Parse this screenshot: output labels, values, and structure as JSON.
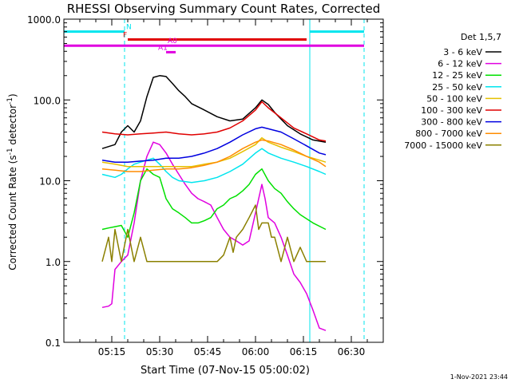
{
  "chart_data": {
    "type": "line",
    "title": "RHESSI Observing Summary Count Rates, Corrected",
    "xlabel": "Start Time (07-Nov-15 05:00:02)",
    "ylabel": "Corrected Count Rate (s",
    "ylabel_sup1": "-1",
    "ylabel_mid": " detector",
    "ylabel_sup2": "-1",
    "ylabel_end": ")",
    "y_scale": "log",
    "ylim": [
      0.1,
      1000
    ],
    "xlim": [
      "05:00",
      "06:40"
    ],
    "yticks": [
      {
        "value": 0.1,
        "label": "0.1"
      },
      {
        "value": 1,
        "label": "1.0"
      },
      {
        "value": 10,
        "label": "10.0"
      },
      {
        "value": 100,
        "label": "100.0"
      },
      {
        "value": 1000,
        "label": "1000.0"
      }
    ],
    "xticks": [
      {
        "value": "05:15",
        "label": "05:15"
      },
      {
        "value": "05:30",
        "label": "05:30"
      },
      {
        "value": "05:45",
        "label": "05:45"
      },
      {
        "value": "06:00",
        "label": "06:00"
      },
      {
        "value": "06:15",
        "label": "06:15"
      },
      {
        "value": "06:30",
        "label": "06:30"
      }
    ],
    "legend_title": "Det 1,5,7",
    "legend_position": "right",
    "timestamp": "1-Nov-2021 23:44",
    "vlines": [
      {
        "time": "05:00",
        "color": "#00e5ee",
        "style": "solid"
      },
      {
        "time": "05:19",
        "color": "#00e5ee",
        "style": "dashed"
      },
      {
        "time": "06:17",
        "color": "#00e5ee",
        "style": "solid"
      },
      {
        "time": "06:34",
        "color": "#00e5ee",
        "style": "dashed"
      }
    ],
    "flags": [
      {
        "label": "N",
        "color": "#00e5ee",
        "y": 700,
        "segments": [
          [
            "05:00",
            "05:19"
          ],
          [
            "06:17",
            "06:34"
          ]
        ],
        "label_at": "05:19"
      },
      {
        "label": "F",
        "color": "#e00000",
        "y": 560,
        "segments": [
          [
            "05:20",
            "06:16"
          ]
        ],
        "label_at": "05:18"
      },
      {
        "label": "A0",
        "color": "#e000e0",
        "y": 470,
        "segments": [
          [
            "05:00",
            "06:34"
          ]
        ],
        "label_at": "05:32"
      },
      {
        "label": "A1",
        "color": "#e000e0",
        "y": 390,
        "segments": [
          [
            "05:32",
            "05:35"
          ]
        ],
        "label_at": "05:29"
      }
    ],
    "series": [
      {
        "name": "3 - 6 keV",
        "color": "#000000",
        "points": [
          [
            "05:12",
            25
          ],
          [
            "05:16",
            28
          ],
          [
            "05:18",
            40
          ],
          [
            "05:20",
            48
          ],
          [
            "05:22",
            40
          ],
          [
            "05:24",
            55
          ],
          [
            "05:26",
            110
          ],
          [
            "05:28",
            190
          ],
          [
            "05:30",
            200
          ],
          [
            "05:32",
            195
          ],
          [
            "05:34",
            160
          ],
          [
            "05:36",
            130
          ],
          [
            "05:38",
            110
          ],
          [
            "05:40",
            90
          ],
          [
            "05:44",
            75
          ],
          [
            "05:48",
            62
          ],
          [
            "05:52",
            55
          ],
          [
            "05:56",
            58
          ],
          [
            "06:00",
            80
          ],
          [
            "06:02",
            100
          ],
          [
            "06:04",
            88
          ],
          [
            "06:06",
            70
          ],
          [
            "06:08",
            58
          ],
          [
            "06:10",
            48
          ],
          [
            "06:14",
            38
          ],
          [
            "06:18",
            32
          ],
          [
            "06:22",
            30
          ]
        ]
      },
      {
        "name": "6 - 12 keV",
        "color": "#e000e0",
        "points": [
          [
            "05:12",
            0.27
          ],
          [
            "05:14",
            0.28
          ],
          [
            "05:15",
            0.3
          ],
          [
            "05:16",
            0.8
          ],
          [
            "05:18",
            1.0
          ],
          [
            "05:20",
            1.2
          ],
          [
            "05:22",
            3
          ],
          [
            "05:24",
            10
          ],
          [
            "05:26",
            20
          ],
          [
            "05:28",
            30
          ],
          [
            "05:30",
            28
          ],
          [
            "05:32",
            22
          ],
          [
            "05:34",
            16
          ],
          [
            "05:36",
            12
          ],
          [
            "05:38",
            9
          ],
          [
            "05:40",
            7
          ],
          [
            "05:42",
            6
          ],
          [
            "05:44",
            5.5
          ],
          [
            "05:46",
            5
          ],
          [
            "05:48",
            3.5
          ],
          [
            "05:50",
            2.5
          ],
          [
            "05:52",
            2
          ],
          [
            "05:54",
            1.8
          ],
          [
            "05:56",
            1.6
          ],
          [
            "05:58",
            1.8
          ],
          [
            "06:00",
            4
          ],
          [
            "06:02",
            9
          ],
          [
            "06:03",
            6
          ],
          [
            "06:04",
            3.5
          ],
          [
            "06:06",
            3
          ],
          [
            "06:08",
            2
          ],
          [
            "06:10",
            1.2
          ],
          [
            "06:12",
            0.7
          ],
          [
            "06:14",
            0.55
          ],
          [
            "06:16",
            0.4
          ],
          [
            "06:18",
            0.25
          ],
          [
            "06:20",
            0.15
          ],
          [
            "06:22",
            0.14
          ]
        ]
      },
      {
        "name": "12 - 25 keV",
        "color": "#00e000",
        "points": [
          [
            "05:12",
            2.5
          ],
          [
            "05:14",
            2.6
          ],
          [
            "05:16",
            2.7
          ],
          [
            "05:18",
            2.8
          ],
          [
            "05:20",
            2.0
          ],
          [
            "05:22",
            4
          ],
          [
            "05:24",
            10
          ],
          [
            "05:26",
            14
          ],
          [
            "05:28",
            12
          ],
          [
            "05:30",
            11
          ],
          [
            "05:32",
            6
          ],
          [
            "05:34",
            4.5
          ],
          [
            "05:36",
            4
          ],
          [
            "05:38",
            3.5
          ],
          [
            "05:40",
            3
          ],
          [
            "05:42",
            3
          ],
          [
            "05:44",
            3.2
          ],
          [
            "05:46",
            3.5
          ],
          [
            "05:48",
            4.5
          ],
          [
            "05:50",
            5
          ],
          [
            "05:52",
            6
          ],
          [
            "05:54",
            6.5
          ],
          [
            "05:56",
            7.5
          ],
          [
            "05:58",
            9
          ],
          [
            "06:00",
            12
          ],
          [
            "06:02",
            14
          ],
          [
            "06:04",
            10
          ],
          [
            "06:06",
            8
          ],
          [
            "06:08",
            7
          ],
          [
            "06:10",
            5.5
          ],
          [
            "06:12",
            4.5
          ],
          [
            "06:14",
            3.8
          ],
          [
            "06:18",
            3
          ],
          [
            "06:22",
            2.5
          ]
        ]
      },
      {
        "name": "25 - 50 keV",
        "color": "#00e5ee",
        "points": [
          [
            "05:12",
            12
          ],
          [
            "05:16",
            11
          ],
          [
            "05:18",
            12
          ],
          [
            "05:20",
            14
          ],
          [
            "05:22",
            16
          ],
          [
            "05:24",
            17
          ],
          [
            "05:26",
            18
          ],
          [
            "05:28",
            19
          ],
          [
            "05:30",
            16
          ],
          [
            "05:32",
            13
          ],
          [
            "05:34",
            11
          ],
          [
            "05:36",
            10
          ],
          [
            "05:40",
            9.5
          ],
          [
            "05:44",
            10
          ],
          [
            "05:48",
            11
          ],
          [
            "05:52",
            13
          ],
          [
            "05:56",
            16
          ],
          [
            "06:00",
            22
          ],
          [
            "06:02",
            25
          ],
          [
            "06:04",
            22
          ],
          [
            "06:08",
            19
          ],
          [
            "06:12",
            17
          ],
          [
            "06:16",
            15
          ],
          [
            "06:20",
            13
          ],
          [
            "06:22",
            12
          ]
        ]
      },
      {
        "name": "50 - 100 keV",
        "color": "#e5c000",
        "points": [
          [
            "05:12",
            17
          ],
          [
            "05:16",
            16
          ],
          [
            "05:20",
            15
          ],
          [
            "05:24",
            15
          ],
          [
            "05:28",
            15
          ],
          [
            "05:32",
            15
          ],
          [
            "05:36",
            15
          ],
          [
            "05:40",
            15
          ],
          [
            "05:44",
            16
          ],
          [
            "05:48",
            17
          ],
          [
            "05:52",
            19
          ],
          [
            "05:56",
            23
          ],
          [
            "06:00",
            28
          ],
          [
            "06:02",
            34
          ],
          [
            "06:04",
            30
          ],
          [
            "06:08",
            26
          ],
          [
            "06:12",
            23
          ],
          [
            "06:16",
            20
          ],
          [
            "06:20",
            18
          ],
          [
            "06:22",
            17
          ]
        ]
      },
      {
        "name": "100 - 300 keV",
        "color": "#e00000",
        "points": [
          [
            "05:12",
            40
          ],
          [
            "05:16",
            38
          ],
          [
            "05:20",
            37
          ],
          [
            "05:24",
            38
          ],
          [
            "05:28",
            39
          ],
          [
            "05:32",
            40
          ],
          [
            "05:36",
            38
          ],
          [
            "05:40",
            37
          ],
          [
            "05:44",
            38
          ],
          [
            "05:48",
            40
          ],
          [
            "05:52",
            45
          ],
          [
            "05:56",
            55
          ],
          [
            "06:00",
            75
          ],
          [
            "06:02",
            95
          ],
          [
            "06:04",
            80
          ],
          [
            "06:08",
            60
          ],
          [
            "06:12",
            45
          ],
          [
            "06:16",
            38
          ],
          [
            "06:20",
            32
          ],
          [
            "06:22",
            31
          ]
        ]
      },
      {
        "name": "300 - 800 keV",
        "color": "#0000e0",
        "points": [
          [
            "05:12",
            18
          ],
          [
            "05:16",
            17
          ],
          [
            "05:20",
            17
          ],
          [
            "05:24",
            17.5
          ],
          [
            "05:28",
            18
          ],
          [
            "05:32",
            19
          ],
          [
            "05:36",
            19
          ],
          [
            "05:40",
            20
          ],
          [
            "05:44",
            22
          ],
          [
            "05:48",
            25
          ],
          [
            "05:52",
            30
          ],
          [
            "05:56",
            37
          ],
          [
            "06:00",
            44
          ],
          [
            "06:02",
            46
          ],
          [
            "06:04",
            44
          ],
          [
            "06:08",
            40
          ],
          [
            "06:12",
            33
          ],
          [
            "06:16",
            27
          ],
          [
            "06:20",
            22
          ],
          [
            "06:22",
            21
          ]
        ]
      },
      {
        "name": "800 - 7000 keV",
        "color": "#ff8c00",
        "points": [
          [
            "05:12",
            14
          ],
          [
            "05:16",
            13.5
          ],
          [
            "05:20",
            13
          ],
          [
            "05:24",
            13
          ],
          [
            "05:28",
            13.5
          ],
          [
            "05:32",
            14
          ],
          [
            "05:36",
            14
          ],
          [
            "05:40",
            14.5
          ],
          [
            "05:44",
            15.5
          ],
          [
            "05:48",
            17
          ],
          [
            "05:52",
            20
          ],
          [
            "05:56",
            25
          ],
          [
            "06:00",
            30
          ],
          [
            "06:02",
            32
          ],
          [
            "06:04",
            31
          ],
          [
            "06:08",
            28
          ],
          [
            "06:12",
            24
          ],
          [
            "06:16",
            20
          ],
          [
            "06:20",
            17
          ],
          [
            "06:22",
            15
          ]
        ]
      },
      {
        "name": "7000 - 15000 keV",
        "color": "#8b8000",
        "points": [
          [
            "05:12",
            1
          ],
          [
            "05:14",
            2
          ],
          [
            "05:15",
            1
          ],
          [
            "05:16",
            2.5
          ],
          [
            "05:18",
            1
          ],
          [
            "05:20",
            2.5
          ],
          [
            "05:22",
            1
          ],
          [
            "05:24",
            2
          ],
          [
            "05:26",
            1
          ],
          [
            "05:28",
            1
          ],
          [
            "05:30",
            1
          ],
          [
            "05:32",
            1
          ],
          [
            "05:36",
            1
          ],
          [
            "05:40",
            1
          ],
          [
            "05:44",
            1
          ],
          [
            "05:48",
            1
          ],
          [
            "05:50",
            1.2
          ],
          [
            "05:52",
            2
          ],
          [
            "05:53",
            1.3
          ],
          [
            "05:54",
            2
          ],
          [
            "05:56",
            2.5
          ],
          [
            "05:58",
            3.5
          ],
          [
            "06:00",
            5
          ],
          [
            "06:01",
            2.5
          ],
          [
            "06:02",
            3
          ],
          [
            "06:04",
            3
          ],
          [
            "06:05",
            2
          ],
          [
            "06:06",
            2
          ],
          [
            "06:08",
            1
          ],
          [
            "06:10",
            2
          ],
          [
            "06:12",
            1
          ],
          [
            "06:14",
            1.5
          ],
          [
            "06:16",
            1
          ],
          [
            "06:18",
            1
          ],
          [
            "06:22",
            1
          ]
        ]
      }
    ]
  }
}
